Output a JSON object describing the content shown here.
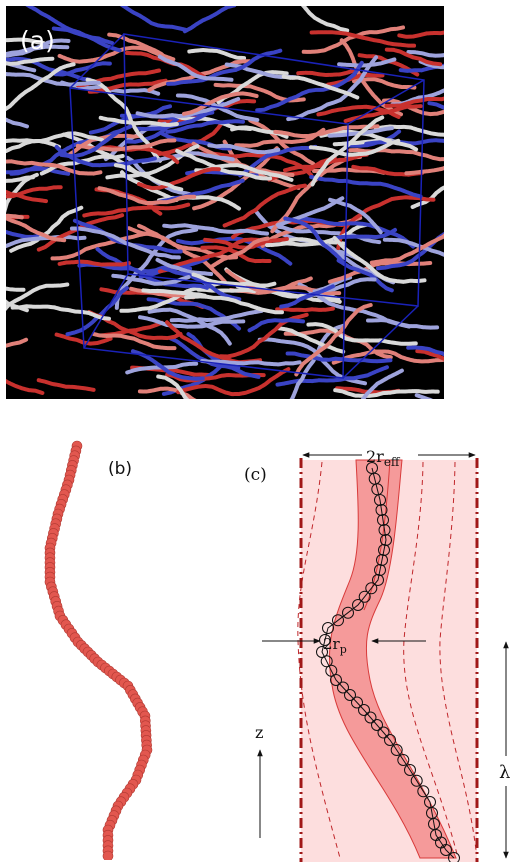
{
  "panel_a": {
    "label": "(a)",
    "box_color": "#1a22b8",
    "bead_colors": [
      "#c8312e",
      "#e08079",
      "#d9d9d9",
      "#9ea3dc",
      "#3a43c4"
    ]
  },
  "panel_b": {
    "label": "(b)",
    "bead_color": "#e2574f"
  },
  "panel_c": {
    "label": "(c)",
    "top_width_label": "2r",
    "top_width_subscript": "eff",
    "radius_label": "2r",
    "radius_subscript": "p",
    "axis_label": "z",
    "wavelength_label": "λ",
    "outer_fill": "#fddede",
    "tube_fill": "#f59a9a",
    "wall_color": "#a01818"
  }
}
